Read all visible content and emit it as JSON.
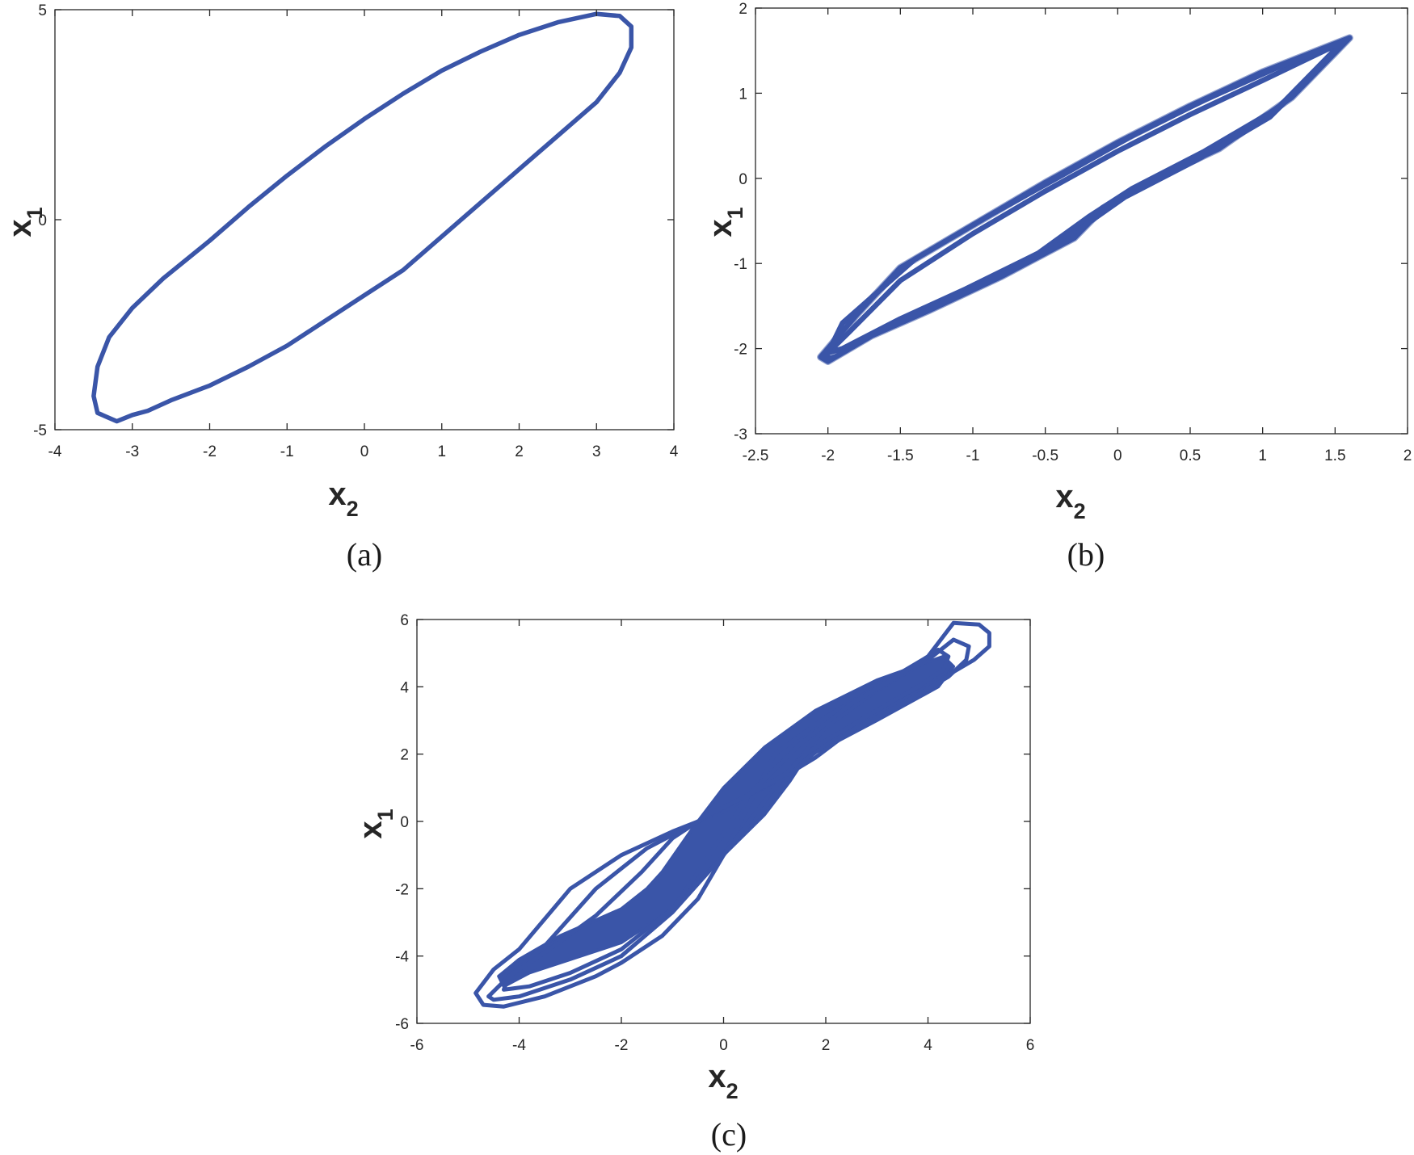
{
  "chart_data": [
    {
      "type": "line",
      "panel_label": "(a)",
      "xlabel": "x",
      "xlabel_sub": "2",
      "ylabel": "x",
      "ylabel_sub": "1",
      "xlim": [
        -4,
        4
      ],
      "ylim": [
        -5,
        5
      ],
      "xticks": [
        -4,
        -3,
        -2,
        -1,
        0,
        1,
        2,
        3,
        4
      ],
      "yticks": [
        -5,
        0,
        5
      ],
      "grid": false,
      "color": "#3a55a8",
      "series": [
        {
          "x": [
            3.0,
            3.3,
            3.45,
            3.45,
            3.3,
            3.0,
            2.5,
            2.0,
            1.5,
            1.0,
            0.5,
            0.0,
            -0.5,
            -1.0,
            -1.5,
            -2.0,
            -2.5,
            -2.8,
            -3.0,
            -3.2,
            -3.45,
            -3.5,
            -3.45,
            -3.3,
            -3.0,
            -2.6,
            -2.0,
            -1.5,
            -1.0,
            -0.5,
            0.0,
            0.5,
            1.0,
            1.5,
            2.0,
            2.5,
            3.0
          ],
          "y": [
            4.9,
            4.85,
            4.6,
            4.1,
            3.5,
            2.8,
            2.0,
            1.2,
            0.4,
            -0.4,
            -1.2,
            -1.8,
            -2.4,
            -3.0,
            -3.5,
            -3.95,
            -4.3,
            -4.55,
            -4.65,
            -4.8,
            -4.6,
            -4.2,
            -3.5,
            -2.8,
            -2.1,
            -1.4,
            -0.5,
            0.3,
            1.05,
            1.75,
            2.4,
            3.0,
            3.55,
            4.0,
            4.4,
            4.7,
            4.9
          ]
        }
      ]
    },
    {
      "type": "line",
      "panel_label": "(b)",
      "xlabel": "x",
      "xlabel_sub": "2",
      "ylabel": "x",
      "ylabel_sub": "1",
      "xlim": [
        -2.5,
        2
      ],
      "ylim": [
        -3,
        2
      ],
      "xticks": [
        -2.5,
        -2,
        -1.5,
        -1,
        -0.5,
        0,
        0.5,
        1,
        1.5,
        2
      ],
      "xtick_labels": [
        "-2.5",
        "-2",
        "-1.5",
        "-1",
        "-0.5",
        "0",
        "0.5",
        "1",
        "1.5",
        "2"
      ],
      "yticks": [
        -3,
        -2,
        -1,
        0,
        1,
        2
      ],
      "grid": false,
      "color": "#3a55a8",
      "series": [
        {
          "x": [
            1.6,
            1.0,
            0.5,
            0.0,
            -0.5,
            -1.0,
            -1.5,
            -1.8,
            -2.05,
            -2.0,
            -1.7,
            -1.3,
            -0.8,
            -0.3,
            -0.1,
            0.2,
            0.7,
            1.2,
            1.6
          ],
          "y": [
            1.65,
            1.25,
            0.85,
            0.42,
            -0.05,
            -0.55,
            -1.05,
            -1.6,
            -2.1,
            -2.15,
            -1.85,
            -1.55,
            -1.15,
            -0.7,
            -0.35,
            -0.05,
            0.35,
            0.95,
            1.65
          ]
        },
        {
          "x": [
            1.55,
            1.0,
            0.5,
            0.0,
            -0.5,
            -1.0,
            -1.5,
            -1.85,
            -2.0,
            -1.9,
            -1.5,
            -1.05,
            -0.55,
            -0.2,
            0.1,
            0.6,
            1.1,
            1.55
          ],
          "y": [
            1.6,
            1.15,
            0.75,
            0.32,
            -0.15,
            -0.65,
            -1.2,
            -1.8,
            -2.05,
            -2.0,
            -1.65,
            -1.3,
            -0.88,
            -0.45,
            -0.12,
            0.32,
            0.82,
            1.6
          ]
        },
        {
          "x": [
            1.58,
            1.1,
            0.6,
            0.1,
            -0.4,
            -0.9,
            -1.4,
            -1.9,
            -2.02,
            -1.95,
            -1.6,
            -1.15,
            -0.65,
            -0.25,
            0.05,
            0.55,
            1.05,
            1.58
          ],
          "y": [
            1.62,
            1.3,
            0.92,
            0.5,
            0.02,
            -0.45,
            -0.95,
            -1.7,
            -2.12,
            -2.1,
            -1.75,
            -1.42,
            -1.0,
            -0.58,
            -0.22,
            0.22,
            0.72,
            1.62
          ]
        }
      ]
    },
    {
      "type": "line",
      "panel_label": "(c)",
      "xlabel": "x",
      "xlabel_sub": "2",
      "ylabel": "x",
      "ylabel_sub": "1",
      "xlim": [
        -6,
        6
      ],
      "ylim": [
        -6,
        6
      ],
      "xticks": [
        -6,
        -4,
        -2,
        0,
        2,
        4,
        6
      ],
      "yticks": [
        -6,
        -4,
        -2,
        0,
        2,
        4,
        6
      ],
      "grid": false,
      "color": "#3a55a8",
      "series": [
        {
          "x": [
            4.5,
            5.0,
            5.2,
            5.2,
            4.9,
            4.0,
            3.0,
            2.0,
            1.5,
            1.0,
            0.0,
            -1.0,
            -2.0,
            -3.0,
            -4.0,
            -4.5,
            -4.85,
            -4.7,
            -4.3,
            -3.5,
            -2.5,
            -2.0,
            -1.2,
            -0.5,
            0.0,
            0.5,
            1.0,
            2.0,
            3.0,
            4.0,
            4.5
          ],
          "y": [
            5.9,
            5.85,
            5.6,
            5.2,
            4.8,
            4.0,
            3.2,
            2.3,
            1.7,
            1.2,
            0.3,
            -0.3,
            -1.0,
            -2.0,
            -3.8,
            -4.4,
            -5.1,
            -5.45,
            -5.5,
            -5.2,
            -4.6,
            -4.2,
            -3.4,
            -2.3,
            -1.0,
            0.5,
            2.0,
            3.1,
            4.0,
            4.9,
            5.9
          ]
        },
        {
          "x": [
            4.5,
            4.8,
            4.75,
            4.4,
            3.5,
            2.5,
            1.8,
            1.2,
            0.5,
            -0.5,
            -1.5,
            -2.5,
            -3.5,
            -4.2,
            -4.6,
            -4.5,
            -4.0,
            -3.0,
            -2.0,
            -1.0,
            0.0,
            1.0,
            2.0,
            3.0,
            4.0,
            4.5
          ],
          "y": [
            5.4,
            5.2,
            4.8,
            4.3,
            3.5,
            2.7,
            1.9,
            1.35,
            0.8,
            0.0,
            -0.8,
            -2.0,
            -3.7,
            -4.6,
            -5.2,
            -5.3,
            -5.2,
            -4.7,
            -4.0,
            -2.7,
            -1.0,
            1.0,
            2.8,
            3.9,
            4.8,
            5.4
          ]
        },
        {
          "x": [
            4.2,
            4.4,
            4.3,
            3.8,
            3.0,
            2.0,
            1.6,
            1.2,
            0.5,
            -0.3,
            -1.0,
            -1.6,
            -2.5,
            -3.5,
            -4.2,
            -4.3,
            -3.8,
            -3.0,
            -2.0,
            -1.0,
            -0.5,
            0.5,
            1.5,
            2.5,
            3.5,
            4.2
          ],
          "y": [
            5.1,
            4.9,
            4.5,
            4.0,
            3.3,
            2.4,
            2.0,
            1.4,
            0.8,
            0.2,
            -0.5,
            -1.5,
            -2.8,
            -3.9,
            -4.6,
            -5.0,
            -4.9,
            -4.5,
            -3.8,
            -2.6,
            -1.5,
            0.8,
            2.3,
            3.5,
            4.4,
            5.1
          ]
        }
      ]
    }
  ]
}
